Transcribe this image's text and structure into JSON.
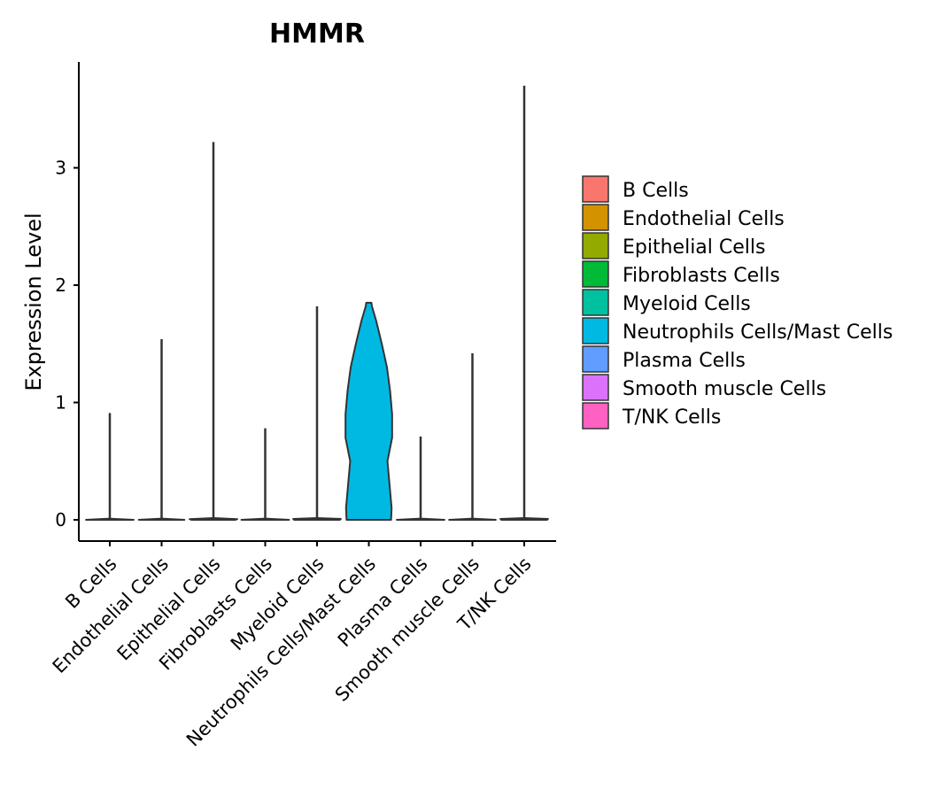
{
  "chart_data": {
    "type": "violin",
    "title": "HMMR",
    "xlabel": "",
    "ylabel": "Expression Level",
    "ylim": [
      -0.18,
      3.9
    ],
    "yticks": [
      0,
      1,
      2,
      3
    ],
    "ytick_labels": [
      "0",
      "1",
      "2",
      "3"
    ],
    "grid": false,
    "legend_position": "right",
    "categories": [
      "B Cells",
      "Endothelial Cells",
      "Epithelial Cells",
      "Fibroblasts Cells",
      "Myeloid Cells",
      "Neutrophils Cells/Mast Cells",
      "Plasma Cells",
      "Smooth muscle Cells",
      "T/NK Cells"
    ],
    "colors": [
      "#F8766D",
      "#D39200",
      "#93AA00",
      "#00BA38",
      "#00C19F",
      "#00B9E3",
      "#619CFF",
      "#DB72FB",
      "#FF61C3"
    ],
    "series": [
      {
        "name": "B Cells",
        "min": 0,
        "max": 0.91,
        "profile": [
          [
            0,
            0.46
          ],
          [
            0.01,
            0.0
          ]
        ]
      },
      {
        "name": "Endothelial Cells",
        "min": 0,
        "max": 1.54,
        "profile": [
          [
            0,
            0.44
          ],
          [
            0.01,
            0.0
          ]
        ]
      },
      {
        "name": "Epithelial Cells",
        "min": 0,
        "max": 3.22,
        "profile": [
          [
            0,
            0.42
          ],
          [
            0.006,
            0.46
          ],
          [
            0.015,
            0.0
          ]
        ]
      },
      {
        "name": "Fibroblasts Cells",
        "min": 0,
        "max": 0.78,
        "profile": [
          [
            0,
            0.46
          ],
          [
            0.01,
            0.0
          ]
        ]
      },
      {
        "name": "Myeloid Cells",
        "min": 0,
        "max": 1.82,
        "profile": [
          [
            0,
            0.44
          ],
          [
            0.008,
            0.46
          ],
          [
            0.015,
            0.0
          ]
        ]
      },
      {
        "name": "Neutrophils Cells/Mast Cells",
        "min": 0,
        "max": 1.85,
        "profile": [
          [
            0,
            0.43
          ],
          [
            0.1,
            0.44
          ],
          [
            0.3,
            0.4
          ],
          [
            0.5,
            0.36
          ],
          [
            0.7,
            0.45
          ],
          [
            0.9,
            0.45
          ],
          [
            1.1,
            0.41
          ],
          [
            1.3,
            0.35
          ],
          [
            1.5,
            0.25
          ],
          [
            1.7,
            0.14
          ],
          [
            1.82,
            0.06
          ],
          [
            1.85,
            0.05
          ]
        ]
      },
      {
        "name": "Plasma Cells",
        "min": 0,
        "max": 0.71,
        "profile": [
          [
            0,
            0.46
          ],
          [
            0.01,
            0.0
          ]
        ]
      },
      {
        "name": "Smooth muscle Cells",
        "min": 0,
        "max": 1.42,
        "profile": [
          [
            0,
            0.45
          ],
          [
            0.01,
            0.0
          ]
        ]
      },
      {
        "name": "T/NK Cells",
        "min": 0,
        "max": 3.7,
        "profile": [
          [
            0,
            0.44
          ],
          [
            0.008,
            0.46
          ],
          [
            0.015,
            0.0
          ]
        ]
      }
    ]
  }
}
